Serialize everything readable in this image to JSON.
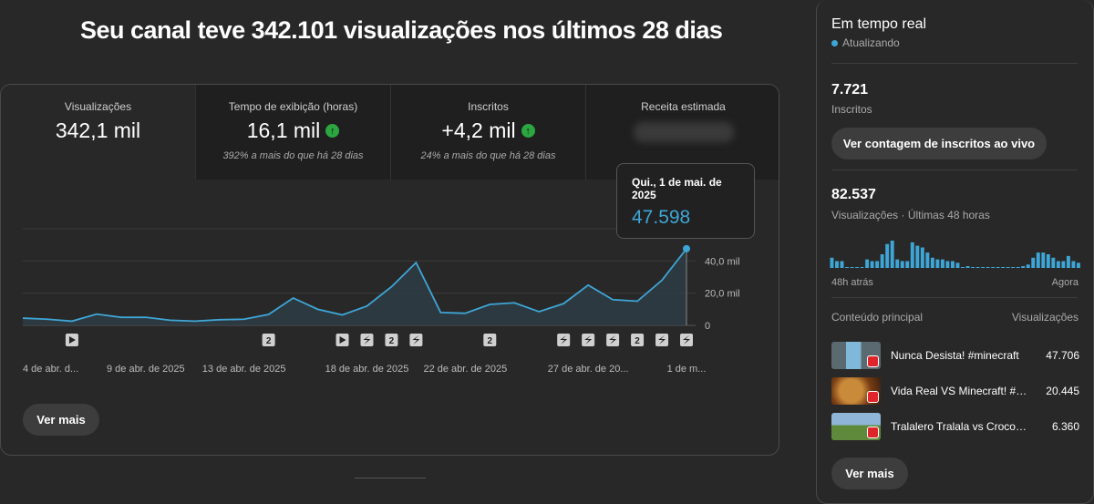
{
  "headline": "Seu canal teve 342.101 visualizações nos últimos 28 dias",
  "metrics": [
    {
      "label": "Visualizações",
      "value": "342,1 mil",
      "delta": ""
    },
    {
      "label": "Tempo de exibição (horas)",
      "value": "16,1 mil",
      "delta": "392% a mais do que há 28 dias"
    },
    {
      "label": "Inscritos",
      "value": "+4,2 mil",
      "delta": "24% a mais do que há 28 dias"
    },
    {
      "label": "Receita estimada",
      "value": "",
      "delta": ""
    }
  ],
  "tooltip": {
    "date": "Qui., 1 de mai. de 2025",
    "value": "47.598"
  },
  "see_more": "Ver mais",
  "colors": {
    "accent": "#3ea6d6",
    "positive": "#2ba640",
    "background": "#282828"
  },
  "chart_data": {
    "type": "area",
    "x": [
      "4 abr",
      "5 abr",
      "6 abr",
      "7 abr",
      "8 abr",
      "9 abr",
      "10 abr",
      "11 abr",
      "12 abr",
      "13 abr",
      "14 abr",
      "15 abr",
      "16 abr",
      "17 abr",
      "18 abr",
      "19 abr",
      "20 abr",
      "21 abr",
      "22 abr",
      "23 abr",
      "24 abr",
      "25 abr",
      "26 abr",
      "27 abr",
      "28 abr",
      "29 abr",
      "30 abr",
      "1 mai"
    ],
    "values": [
      4500,
      3800,
      2600,
      7000,
      5000,
      5000,
      3200,
      2600,
      3500,
      3800,
      6800,
      17000,
      10000,
      6500,
      12000,
      24000,
      39000,
      8000,
      7500,
      13000,
      14000,
      8500,
      13500,
      25000,
      16000,
      15000,
      28000,
      47598
    ],
    "ylim": [
      0,
      60000
    ],
    "yticks": [
      "0",
      "20,0 mil",
      "40,0 mil"
    ],
    "ytick_values": [
      0,
      20000,
      40000
    ],
    "xtick_labels": [
      "4 de abr. d...",
      "9 de abr. de 2025",
      "13 de abr. de 2025",
      "18 de abr. de 2025",
      "22 de abr. de 2025",
      "27 de abr. de 20...",
      "1 de m..."
    ],
    "xtick_index": [
      0,
      5,
      9,
      14,
      18,
      23,
      27
    ],
    "markers": [
      {
        "index": 2,
        "kind": "video"
      },
      {
        "index": 10,
        "kind": "count",
        "label": "2"
      },
      {
        "index": 13,
        "kind": "video"
      },
      {
        "index": 14,
        "kind": "shorts"
      },
      {
        "index": 15,
        "kind": "count",
        "label": "2"
      },
      {
        "index": 16,
        "kind": "shorts"
      },
      {
        "index": 19,
        "kind": "count",
        "label": "2"
      },
      {
        "index": 22,
        "kind": "shorts"
      },
      {
        "index": 23,
        "kind": "shorts"
      },
      {
        "index": 24,
        "kind": "shorts"
      },
      {
        "index": 25,
        "kind": "count",
        "label": "2"
      },
      {
        "index": 26,
        "kind": "shorts"
      },
      {
        "index": 27,
        "kind": "shorts"
      }
    ],
    "grid": true,
    "legend": "none"
  },
  "realtime": {
    "title": "Em tempo real",
    "status": "Atualizando",
    "subscribers_value": "7.721",
    "subscribers_label": "Inscritos",
    "live_count_button": "Ver contagem de inscritos ao vivo",
    "views_value": "82.537",
    "views_label": "Visualizações · Últimas 48 horas",
    "axis_left": "48h atrás",
    "axis_right": "Agora",
    "bars": [
      6,
      4,
      4,
      0,
      0,
      0,
      0,
      5,
      4,
      4,
      8,
      14,
      16,
      5,
      4,
      4,
      15,
      13,
      12,
      9,
      6,
      5,
      5,
      4,
      4,
      3,
      0,
      1,
      0,
      0,
      0,
      0,
      0,
      0,
      0,
      0,
      0,
      0,
      1,
      2,
      6,
      9,
      9,
      8,
      6,
      4,
      4,
      7,
      4,
      3
    ],
    "top_content_header": "Conteúdo principal",
    "views_header": "Visualizações",
    "top_content": [
      {
        "title": "Nunca Desista! #minecraft",
        "value": "47.706"
      },
      {
        "title": "Vida Real VS Minecraft! #minecraft",
        "value": "20.445"
      },
      {
        "title": "Tralalero Tralala vs Crocodilo",
        "value": "6.360"
      }
    ],
    "see_more": "Ver mais"
  }
}
